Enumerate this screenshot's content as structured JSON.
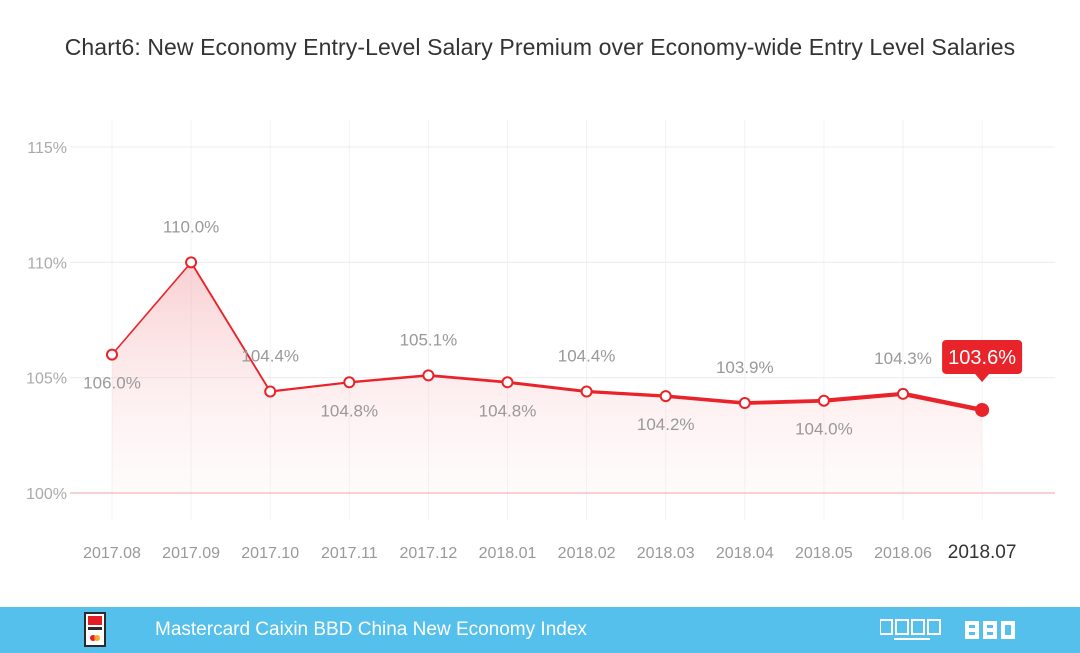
{
  "chart_data": {
    "type": "line",
    "title": "Chart6: New Economy Entry-Level Salary Premium over Economy-wide Entry Level Salaries",
    "categories": [
      "2017.08",
      "2017.09",
      "2017.10",
      "2017.11",
      "2017.12",
      "2018.01",
      "2018.02",
      "2018.03",
      "2018.04",
      "2018.05",
      "2018.06",
      "2018.07"
    ],
    "values": [
      106.0,
      110.0,
      104.4,
      104.8,
      105.1,
      104.8,
      104.4,
      104.2,
      103.9,
      104.0,
      104.3,
      103.6
    ],
    "data_labels": [
      "106.0%",
      "110.0%",
      "104.4%",
      "104.8%",
      "105.1%",
      "104.8%",
      "104.4%",
      "104.2%",
      "103.9%",
      "104.0%",
      "104.3%",
      "103.6%"
    ],
    "y_ticks": [
      100,
      105,
      110,
      115
    ],
    "y_tick_labels": [
      "100%",
      "105%",
      "110%",
      "115%"
    ],
    "ylim": [
      100,
      115
    ],
    "grid": true,
    "highlight_last": true,
    "colors": {
      "line": "#e8232a",
      "area": "#f7c6c8",
      "grid": "#ececec",
      "baseline": "#f0a0a3",
      "label": "#999999",
      "callout_bg": "#e8232a"
    }
  },
  "footer": {
    "title": "Mastercard Caixin BBD China New Economy Index",
    "background": "#55c0ec",
    "logo_left_icon": "nei-logo-icon",
    "logo_caixin_icon": "caixin-insight-logo",
    "logo_bbd_icon": "bbd-logo"
  }
}
